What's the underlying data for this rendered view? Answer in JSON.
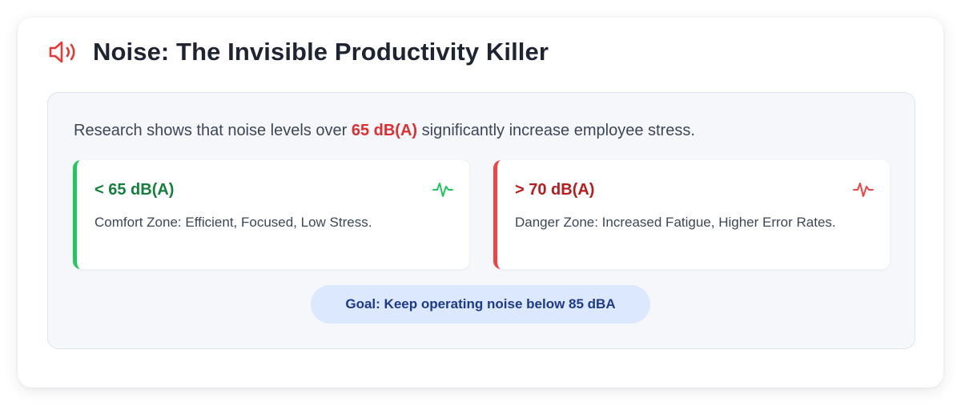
{
  "header": {
    "icon": "speaker-icon",
    "title": "Noise: The Invisible Productivity Killer"
  },
  "research": {
    "prefix": "Research shows that noise levels over ",
    "highlight": "65 dB(A)",
    "suffix": " significantly increase employee stress."
  },
  "zones": [
    {
      "threshold": "< 65 dB(A)",
      "description": "Comfort Zone: Efficient, Focused, Low Stress.",
      "icon": "pulse-icon",
      "accent": "#22c55e"
    },
    {
      "threshold": "> 70 dB(A)",
      "description": "Danger Zone: Increased Fatigue, Higher Error Rates.",
      "icon": "pulse-icon",
      "accent": "#ef4444"
    }
  ],
  "goal": {
    "label": "Goal: Keep operating noise below 85 dBA"
  },
  "colors": {
    "danger": "#dc2f2f",
    "safe": "#15803d",
    "goal_bg": "#dbe8fe",
    "goal_text": "#1e3a8a"
  }
}
